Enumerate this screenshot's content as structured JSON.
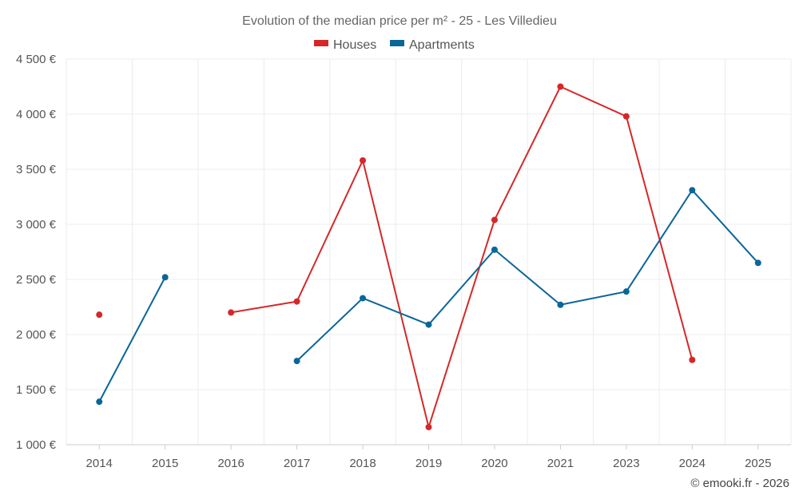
{
  "chart_data": {
    "type": "line",
    "title": "Evolution of the median price per m² - 25 - Les Villedieu",
    "categories": [
      "2014",
      "2015",
      "2016",
      "2017",
      "2018",
      "2019",
      "2020",
      "2021",
      "2023",
      "2024",
      "2025"
    ],
    "ylim": [
      1000,
      4500
    ],
    "yticks": [
      1000,
      1500,
      2000,
      2500,
      3000,
      3500,
      4000,
      4500
    ],
    "ytick_labels": [
      "1 000 €",
      "1 500 €",
      "2 000 €",
      "2 500 €",
      "3 000 €",
      "3 500 €",
      "4 000 €",
      "4 500 €"
    ],
    "xlabel": "",
    "ylabel": "",
    "grid": true,
    "legend_position": "top-center",
    "series": [
      {
        "name": "Houses",
        "color": "#d62728",
        "values": [
          2180,
          null,
          2200,
          2300,
          3580,
          1160,
          3040,
          4250,
          3980,
          1770,
          null
        ]
      },
      {
        "name": "Apartments",
        "color": "#0a6699",
        "values": [
          1390,
          2520,
          null,
          1760,
          2330,
          2090,
          2770,
          2270,
          2390,
          3310,
          2650
        ]
      }
    ],
    "credit": "© emooki.fr - 2026"
  }
}
